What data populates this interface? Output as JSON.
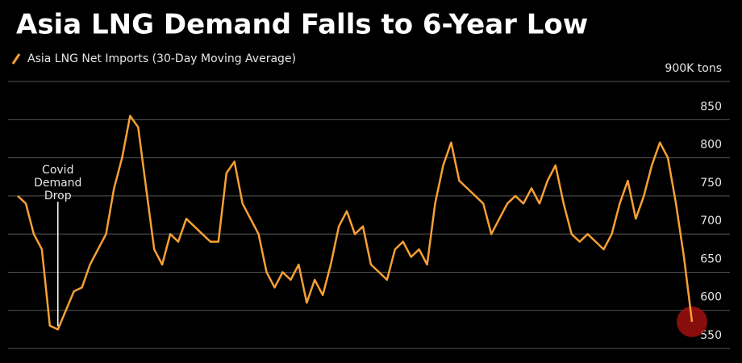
{
  "chart_data": {
    "type": "line",
    "title": "Asia LNG Demand Falls to 6-Year Low",
    "series": [
      {
        "name": "Asia LNG Net Imports (30-Day Moving Average)",
        "color": "#f7a035",
        "values": [
          750,
          740,
          700,
          680,
          580,
          575,
          600,
          625,
          630,
          660,
          680,
          700,
          760,
          800,
          855,
          840,
          760,
          680,
          660,
          700,
          690,
          720,
          710,
          700,
          690,
          690,
          780,
          795,
          740,
          720,
          700,
          650,
          630,
          650,
          640,
          660,
          610,
          640,
          620,
          660,
          710,
          730,
          700,
          710,
          660,
          650,
          640,
          680,
          690,
          670,
          680,
          660,
          740,
          790,
          820,
          770,
          760,
          750,
          740,
          700,
          720,
          740,
          750,
          740,
          760,
          740,
          770,
          790,
          740,
          700,
          690,
          700,
          690,
          680,
          700,
          740,
          770,
          720,
          750,
          790,
          820,
          800,
          740,
          670,
          585
        ]
      }
    ],
    "ylim": [
      531,
      900
    ],
    "yticks": [
      550,
      600,
      650,
      700,
      750,
      800,
      850,
      {
        "value": 900,
        "label": "900K tons"
      }
    ],
    "grid": true,
    "annotation": {
      "lines": [
        "Covid",
        "Demand",
        "Drop"
      ],
      "index": 5
    },
    "highlight_last": true
  }
}
